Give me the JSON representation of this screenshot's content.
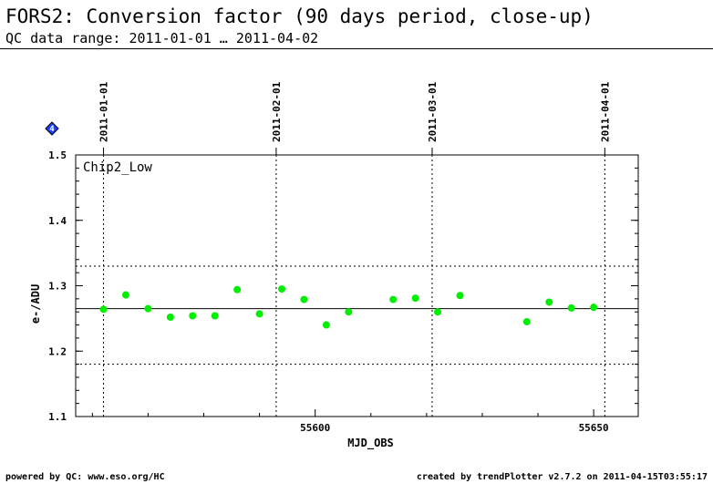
{
  "header": {
    "title": "FORS2: Conversion factor (90 days period, close-up)",
    "subtitle": "QC data range: 2011-01-01 … 2011-04-02"
  },
  "footer": {
    "left": "powered by QC: www.eso.org/HC",
    "right": "created by trendPlotter v2.7.2 on 2011-04-15T03:55:17"
  },
  "badge": {
    "label": "4",
    "color": "#1a3cff"
  },
  "colors": {
    "points": "#00ee00",
    "axis": "#000000"
  },
  "chart_data": {
    "type": "scatter",
    "panel_label": "Chip2_Low",
    "xlabel": "MJD_OBS",
    "ylabel": "e-/ADU",
    "xlim": [
      55557,
      55658
    ],
    "ylim": [
      1.1,
      1.5
    ],
    "x_ticks": [
      55600,
      55650
    ],
    "x_tick_labels": [
      "55600",
      "55650"
    ],
    "y_ticks": [
      1.1,
      1.2,
      1.3,
      1.4,
      1.5
    ],
    "y_tick_labels": [
      "1.1",
      "1.2",
      "1.3",
      "1.4",
      "1.5"
    ],
    "date_markers": [
      {
        "x": 55562,
        "label": "2011-01-01"
      },
      {
        "x": 55593,
        "label": "2011-02-01"
      },
      {
        "x": 55621,
        "label": "2011-03-01"
      },
      {
        "x": 55652,
        "label": "2011-04-01"
      }
    ],
    "reference_lines": {
      "mean": 1.265,
      "upper": 1.33,
      "lower": 1.18
    },
    "points": [
      {
        "x": 55562,
        "y": 1.264
      },
      {
        "x": 55566,
        "y": 1.286
      },
      {
        "x": 55570,
        "y": 1.265
      },
      {
        "x": 55574,
        "y": 1.252
      },
      {
        "x": 55578,
        "y": 1.254
      },
      {
        "x": 55582,
        "y": 1.254
      },
      {
        "x": 55586,
        "y": 1.294
      },
      {
        "x": 55590,
        "y": 1.257
      },
      {
        "x": 55594,
        "y": 1.295
      },
      {
        "x": 55598,
        "y": 1.279
      },
      {
        "x": 55602,
        "y": 1.24
      },
      {
        "x": 55606,
        "y": 1.26
      },
      {
        "x": 55614,
        "y": 1.279
      },
      {
        "x": 55618,
        "y": 1.281
      },
      {
        "x": 55622,
        "y": 1.26
      },
      {
        "x": 55626,
        "y": 1.285
      },
      {
        "x": 55638,
        "y": 1.245
      },
      {
        "x": 55642,
        "y": 1.275
      },
      {
        "x": 55646,
        "y": 1.266
      },
      {
        "x": 55650,
        "y": 1.267
      }
    ]
  }
}
